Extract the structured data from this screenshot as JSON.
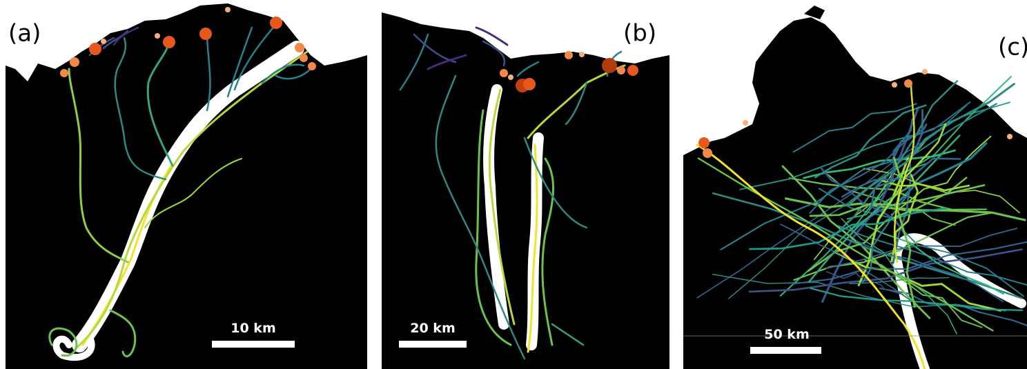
{
  "panels": [
    {
      "label": "(a)",
      "scale_bar": "10 km"
    },
    {
      "label": "(b)",
      "scale_bar": "20 km"
    },
    {
      "label": "(c)",
      "scale_bar": "50 km"
    }
  ]
}
